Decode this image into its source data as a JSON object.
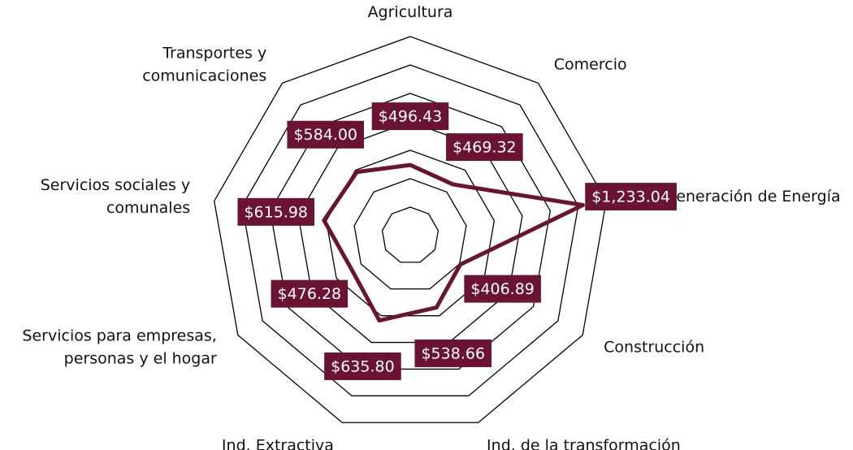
{
  "chart_data": {
    "type": "radar",
    "categories": [
      "Agricultura",
      "Comercio",
      "Ind. Generación de Energía",
      "Construcción",
      "Ind. de la transformación",
      "Ind. Extractiva",
      "Servicios para empresas,\npersonas y el hogar",
      "Servicios sociales y\ncomunales",
      "Transportes y\ncomunicaciones"
    ],
    "series": [
      {
        "color": "#6b1332",
        "values": [
          496.43,
          469.32,
          1233.04,
          406.89,
          538.66,
          635.8,
          476.28,
          615.98,
          584.0
        ],
        "value_labels": [
          "$496.43",
          "$469.32",
          "$1,233.04",
          "$406.89",
          "$538.66",
          "$635.80",
          "$476.28",
          "$615.98",
          "$584.00"
        ]
      }
    ],
    "ylim": [
      0,
      1400
    ],
    "yticks": [
      0,
      200,
      400,
      600,
      800,
      1000,
      1200,
      1400
    ],
    "grid": true
  }
}
